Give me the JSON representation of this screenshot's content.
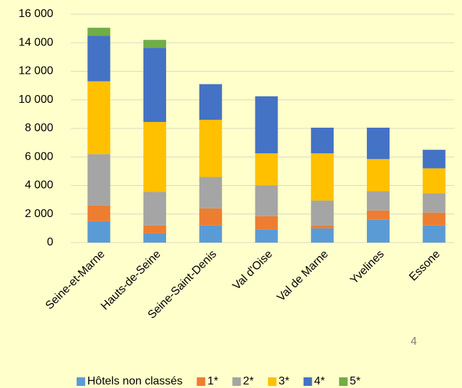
{
  "chart_data": {
    "type": "bar",
    "stacked": true,
    "categories": [
      "Seine-et-Marne",
      "Hauts-de-Seine",
      "Seine-Saint-Denis",
      "Val d'Oise",
      "Val de Marne",
      "Yvelines",
      "Essone"
    ],
    "series": [
      {
        "name": "Hôtels non classés",
        "color": "#5b9bd5",
        "values": [
          1500,
          650,
          1200,
          900,
          1000,
          1600,
          1200
        ]
      },
      {
        "name": "1*",
        "color": "#ed7d31",
        "values": [
          1100,
          550,
          1200,
          950,
          200,
          650,
          900
        ]
      },
      {
        "name": "2*",
        "color": "#a5a5a5",
        "values": [
          3600,
          2350,
          2200,
          2150,
          1750,
          1350,
          1350
        ]
      },
      {
        "name": "3*",
        "color": "#ffc000",
        "values": [
          5100,
          4900,
          4000,
          2250,
          3300,
          2250,
          1750
        ]
      },
      {
        "name": "4*",
        "color": "#4472c4",
        "values": [
          3200,
          5200,
          2500,
          4000,
          1800,
          2200,
          1300
        ]
      },
      {
        "name": "5*",
        "color": "#70ad47",
        "values": [
          550,
          550,
          0,
          0,
          0,
          0,
          0
        ]
      }
    ],
    "ylim": [
      0,
      16000
    ],
    "yticks": [
      0,
      {
        "value": 2000,
        "label": "2 000"
      },
      {
        "value": 4000,
        "label": "4 000"
      },
      {
        "value": 6000,
        "label": "6 000"
      },
      {
        "value": 8000,
        "label": "8 000"
      },
      {
        "value": 10000,
        "label": "10 000"
      },
      {
        "value": 12000,
        "label": "12 000"
      },
      {
        "value": 14000,
        "label": "14 000"
      },
      {
        "value": 16000,
        "label": "16 000"
      }
    ],
    "grid": true,
    "legend": "bottom",
    "annotation": "4"
  }
}
